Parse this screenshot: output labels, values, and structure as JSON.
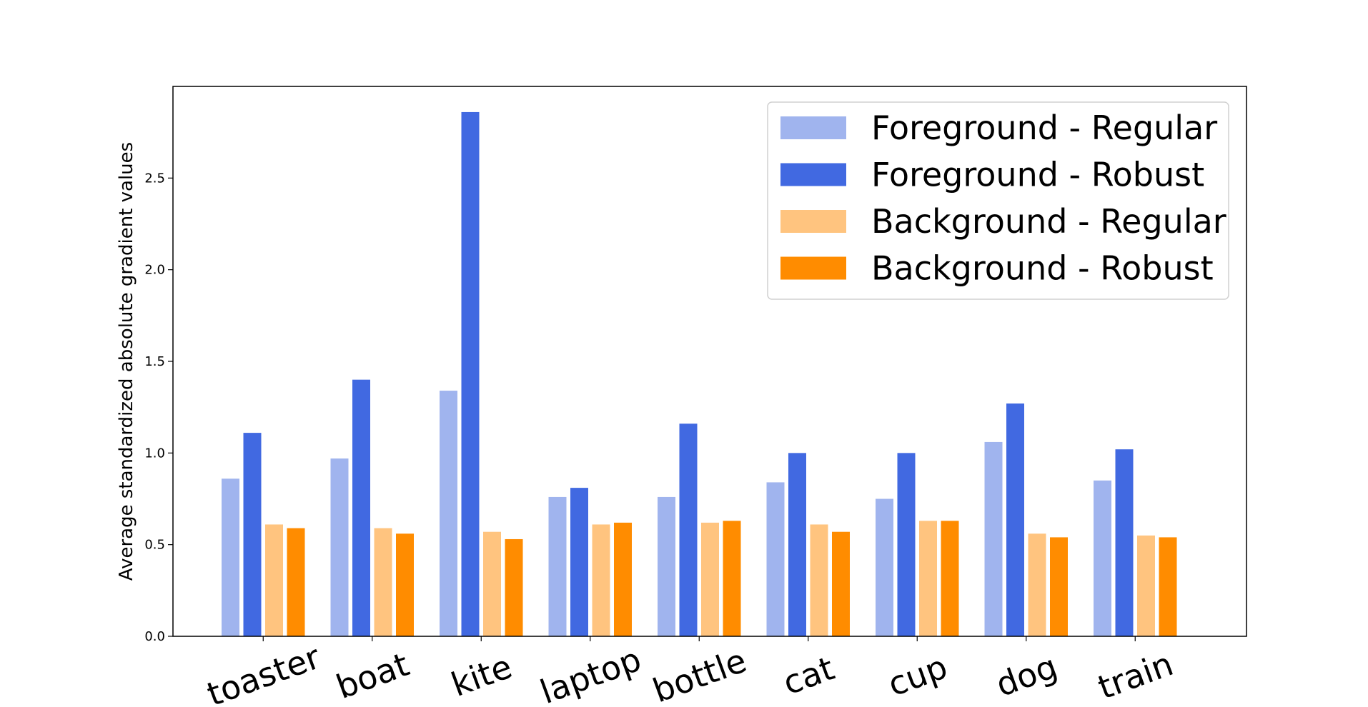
{
  "chart_data": {
    "type": "bar",
    "title": "",
    "xlabel": "",
    "ylabel": "Average standardized absolute gradient values",
    "ylim": [
      0,
      3.0
    ],
    "yticks": [
      "0.0",
      "0.5",
      "1.0",
      "1.5",
      "2.0",
      "2.5"
    ],
    "categories": [
      "toaster",
      "boat",
      "kite",
      "laptop",
      "bottle",
      "cat",
      "cup",
      "dog",
      "train"
    ],
    "legend_position": "top-right",
    "grid": false,
    "series": [
      {
        "name": "Foreground - Regular",
        "color": "#A0B4EE",
        "values": [
          0.86,
          0.97,
          1.34,
          0.76,
          0.76,
          0.84,
          0.75,
          1.06,
          0.85
        ]
      },
      {
        "name": "Foreground - Robust",
        "color": "#4169E1",
        "values": [
          1.11,
          1.4,
          2.86,
          0.81,
          1.16,
          1.0,
          1.0,
          1.27,
          1.02
        ]
      },
      {
        "name": "Background - Regular",
        "color": "#FFC47F",
        "values": [
          0.61,
          0.59,
          0.57,
          0.61,
          0.62,
          0.61,
          0.63,
          0.56,
          0.55
        ]
      },
      {
        "name": "Background - Robust",
        "color": "#FF8C00",
        "values": [
          0.59,
          0.56,
          0.53,
          0.62,
          0.63,
          0.57,
          0.63,
          0.54,
          0.54
        ]
      }
    ]
  }
}
